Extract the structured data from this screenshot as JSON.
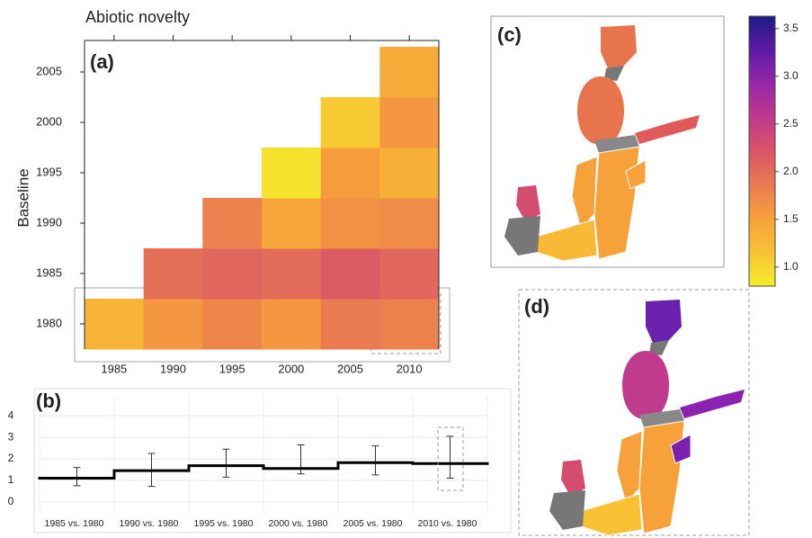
{
  "chart_data": [
    {
      "type": "heatmap",
      "label": "(a)",
      "title": "Abiotic novelty",
      "y_label": "Baseline",
      "x": [
        1985,
        1990,
        1995,
        2000,
        2005,
        2010
      ],
      "y": [
        1980,
        1985,
        1990,
        1995,
        2000,
        2005
      ],
      "z": [
        [
          1.3,
          1.6,
          1.75,
          1.6,
          1.85,
          1.8
        ],
        [
          null,
          1.95,
          2.05,
          2.0,
          2.15,
          2.05
        ],
        [
          null,
          null,
          1.8,
          1.45,
          1.65,
          1.7
        ],
        [
          null,
          null,
          null,
          0.9,
          1.55,
          1.35
        ],
        [
          null,
          null,
          null,
          null,
          1.1,
          1.6
        ],
        [
          null,
          null,
          null,
          null,
          null,
          1.4
        ]
      ],
      "xlim": [
        1982.5,
        2012.5
      ],
      "ylim": [
        1977.5,
        2007.5
      ],
      "xticks": [
        1985,
        1990,
        1995,
        2000,
        2005,
        2010
      ],
      "yticks": [
        1980,
        1985,
        1990,
        1995,
        2000,
        2005
      ],
      "zlim": [
        0.8,
        3.63
      ],
      "zticks": [
        {
          "value": 1,
          "label": "1.0"
        },
        {
          "value": 1.5,
          "label": "1.5"
        },
        {
          "value": 2,
          "label": "2.0"
        },
        {
          "value": 2.5,
          "label": "2.5"
        },
        {
          "value": 3,
          "label": "3.0"
        },
        {
          "value": 3.5,
          "label": "3.5"
        }
      ],
      "colorscale": [
        "#f3ee2a",
        "#f8c234",
        "#f7a13a",
        "#ea7a52",
        "#d95466",
        "#c0398a",
        "#9628a8",
        "#5d1aa6",
        "#1c1b84"
      ]
    },
    {
      "type": "step",
      "label": "(b)",
      "categories": [
        "1985 vs. 1980",
        "1990 vs. 1980",
        "1995 vs. 1980",
        "2000 vs. 1980",
        "2005 vs. 1980",
        "2010 vs. 1980"
      ],
      "values": [
        1.1,
        1.45,
        1.68,
        1.55,
        1.82,
        1.78
      ],
      "lower": [
        0.75,
        0.72,
        1.15,
        1.3,
        1.25,
        1.1
      ],
      "upper": [
        1.6,
        2.25,
        2.45,
        2.65,
        2.6,
        3.05
      ],
      "ylim": [
        -0.3,
        4.3
      ],
      "yticks": [
        0,
        1,
        2,
        3,
        4
      ],
      "color": "#000000",
      "grid": true
    }
  ],
  "maps": [
    {
      "label": "(c)"
    },
    {
      "label": "(d)"
    }
  ]
}
